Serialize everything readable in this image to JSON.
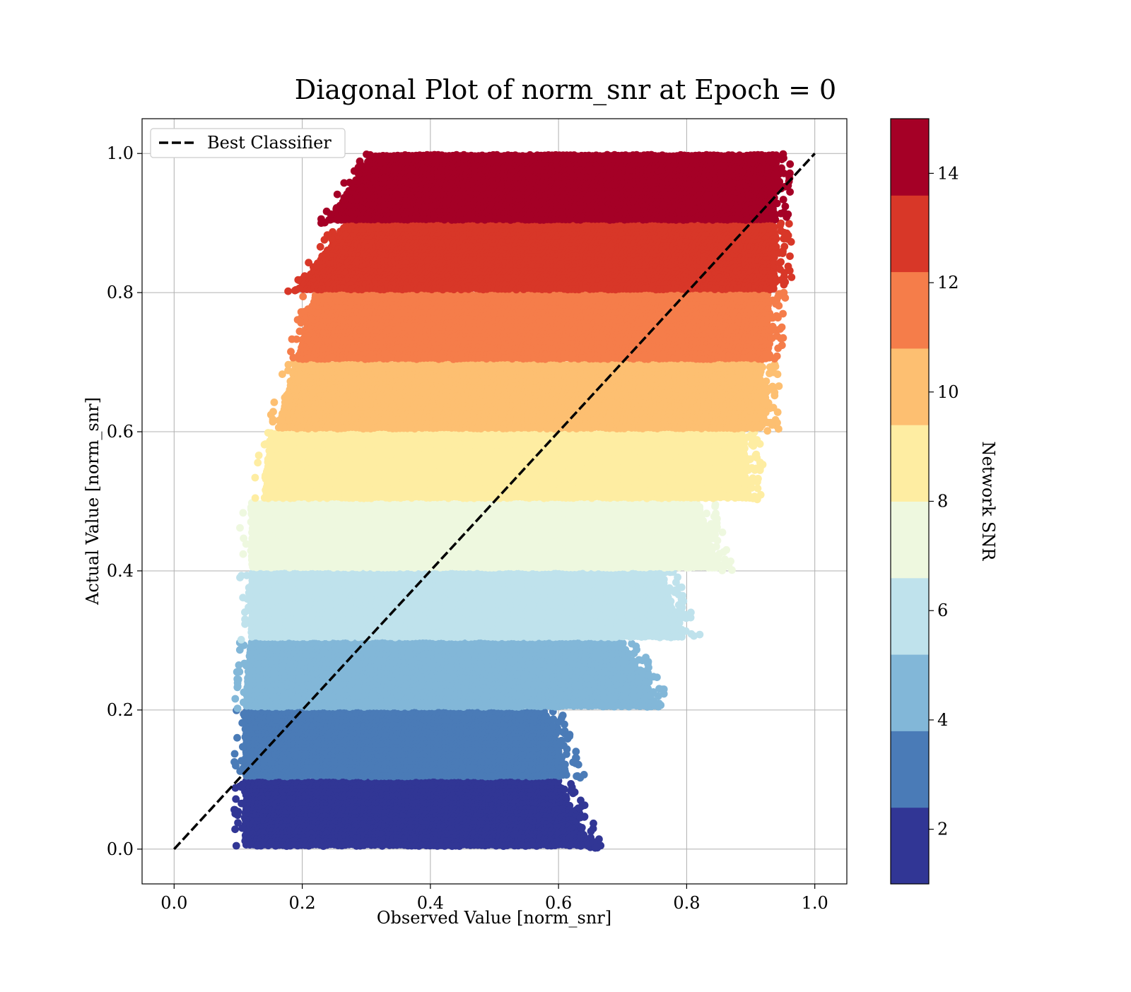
{
  "chart_data": {
    "type": "scatter",
    "title": "Diagonal Plot of norm_snr at Epoch = 0",
    "xlabel": "Observed Value [norm_snr]",
    "ylabel": "Actual Value [norm_snr]",
    "xlim": [
      -0.05,
      1.05
    ],
    "ylim": [
      -0.05,
      1.05
    ],
    "xticks": [
      "0.0",
      "0.2",
      "0.4",
      "0.6",
      "0.8",
      "1.0"
    ],
    "yticks": [
      "0.0",
      "0.2",
      "0.4",
      "0.6",
      "0.8",
      "1.0"
    ],
    "grid": true,
    "legend": {
      "placement": "upper-left",
      "entries": [
        "Best Classifier"
      ]
    },
    "reference_line": {
      "name": "Best Classifier",
      "style": "dashed",
      "color": "#000000",
      "x": [
        0.0,
        1.0
      ],
      "y": [
        0.0,
        1.0
      ]
    },
    "colorbar": {
      "label": "Network SNR",
      "range": [
        1,
        15
      ],
      "ticks": [
        "2",
        "4",
        "6",
        "8",
        "10",
        "12",
        "14"
      ],
      "colors": [
        "#313695",
        "#4a7bb7",
        "#82b7d8",
        "#bfe2ec",
        "#eef8df",
        "#feeda2",
        "#fdbf71",
        "#f57d4a",
        "#d83728",
        "#a50026"
      ]
    },
    "bands": [
      {
        "snr": "2",
        "y_range": [
          0.0,
          0.1
        ],
        "x_range_at_bottom": [
          0.11,
          0.65
        ],
        "x_range_at_top": [
          0.11,
          0.6
        ],
        "color": "#313695"
      },
      {
        "snr": "3",
        "y_range": [
          0.1,
          0.2
        ],
        "x_range_at_bottom": [
          0.11,
          0.62
        ],
        "x_range_at_top": [
          0.11,
          0.58
        ],
        "color": "#4a7bb7"
      },
      {
        "snr": "5",
        "y_range": [
          0.2,
          0.3
        ],
        "x_range_at_bottom": [
          0.11,
          0.76
        ],
        "x_range_at_top": [
          0.12,
          0.7
        ],
        "color": "#82b7d8"
      },
      {
        "snr": "6",
        "y_range": [
          0.3,
          0.4
        ],
        "x_range_at_bottom": [
          0.12,
          0.8
        ],
        "x_range_at_top": [
          0.12,
          0.76
        ],
        "color": "#bfe2ec"
      },
      {
        "snr": "7",
        "y_range": [
          0.4,
          0.5
        ],
        "x_range_at_bottom": [
          0.12,
          0.85
        ],
        "x_range_at_top": [
          0.12,
          0.82
        ],
        "color": "#eef8df"
      },
      {
        "snr": "9",
        "y_range": [
          0.5,
          0.6
        ],
        "x_range_at_bottom": [
          0.14,
          0.9
        ],
        "x_range_at_top": [
          0.15,
          0.89
        ],
        "color": "#feeda2"
      },
      {
        "snr": "10",
        "y_range": [
          0.6,
          0.7
        ],
        "x_range_at_bottom": [
          0.16,
          0.92
        ],
        "x_range_at_top": [
          0.19,
          0.92
        ],
        "color": "#fdbf71"
      },
      {
        "snr": "11",
        "y_range": [
          0.7,
          0.8
        ],
        "x_range_at_bottom": [
          0.19,
          0.93
        ],
        "x_range_at_top": [
          0.22,
          0.93
        ],
        "color": "#f57d4a"
      },
      {
        "snr": "13",
        "y_range": [
          0.8,
          0.9
        ],
        "x_range_at_bottom": [
          0.19,
          0.94
        ],
        "x_range_at_top": [
          0.27,
          0.94
        ],
        "color": "#d83728"
      },
      {
        "snr": "14",
        "y_range": [
          0.9,
          1.0
        ],
        "x_range_at_bottom": [
          0.24,
          0.94
        ],
        "x_range_at_top": [
          0.31,
          0.94
        ],
        "color": "#a50026"
      }
    ]
  }
}
